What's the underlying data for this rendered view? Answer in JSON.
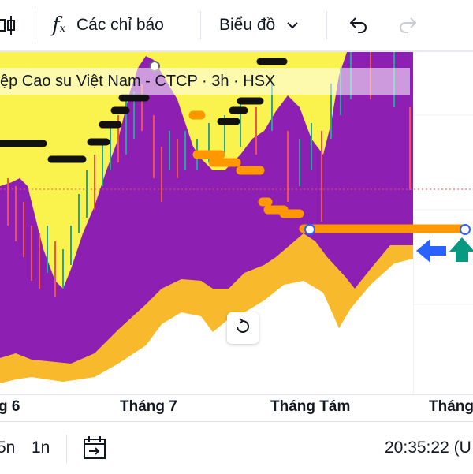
{
  "toolbar": {
    "indicators_label": "Các chỉ báo",
    "chart_type_label": "Biểu đồ",
    "icons": [
      "candle-bar-icon",
      "function-icon",
      "chevron-down-icon",
      "undo-icon",
      "redo-icon"
    ]
  },
  "legend": {
    "symbol_text": "ệp Cao su Việt Nam - CTCP · 3h · HSX"
  },
  "time_axis": {
    "labels": [
      "g 6",
      "Tháng 7",
      "Tháng Tám",
      "Tháng"
    ]
  },
  "bottom_bar": {
    "range_5n": "5n",
    "range_1n": "1n",
    "clock": "20:35:22 (U"
  },
  "colors": {
    "purple_area": "#8e1fb3",
    "yellow_fill": "#fbf34d",
    "gold_band": "#f8ba2c",
    "orange_line": "#ff9800",
    "candle_up": "#26a69a",
    "candle_down": "#ef5350",
    "arrow_blue": "#2962ff",
    "arrow_green": "#089981"
  }
}
